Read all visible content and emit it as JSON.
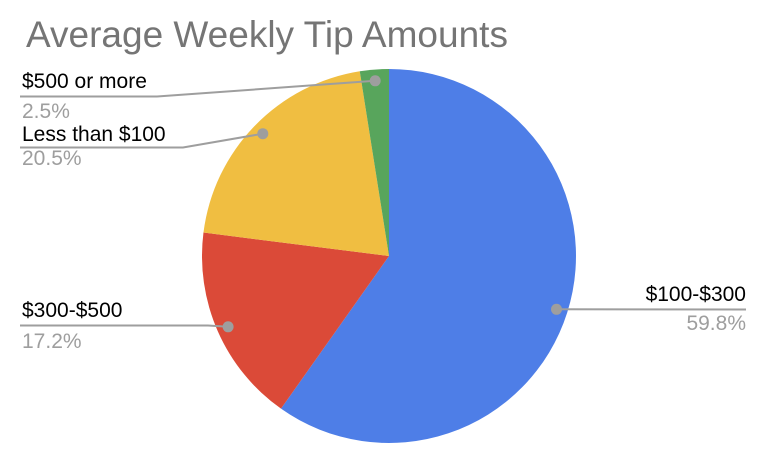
{
  "title": "Average Weekly Tip Amounts",
  "chart_data": {
    "type": "pie",
    "title": "Average Weekly Tip Amounts",
    "start_angle_deg": 0,
    "direction": "clockwise",
    "legend_position": "outside-callouts",
    "slices": [
      {
        "label": "$100-$300",
        "value": 59.8,
        "pct_label": "59.8%",
        "color": "#4E7EE7"
      },
      {
        "label": "$300-$500",
        "value": 17.2,
        "pct_label": "17.2%",
        "color": "#DB4A38"
      },
      {
        "label": "Less than $100",
        "value": 20.5,
        "pct_label": "20.5%",
        "color": "#F0BE41"
      },
      {
        "label": "$500 or more",
        "value": 2.5,
        "pct_label": "2.5%",
        "color": "#58A55C"
      }
    ],
    "colors": {
      "title_text": "#757575",
      "label_text": "#000000",
      "percent_text": "#9e9e9e",
      "leader_line": "#9e9e9e",
      "leader_dot": "#9e9e9e",
      "background": "#ffffff"
    }
  }
}
